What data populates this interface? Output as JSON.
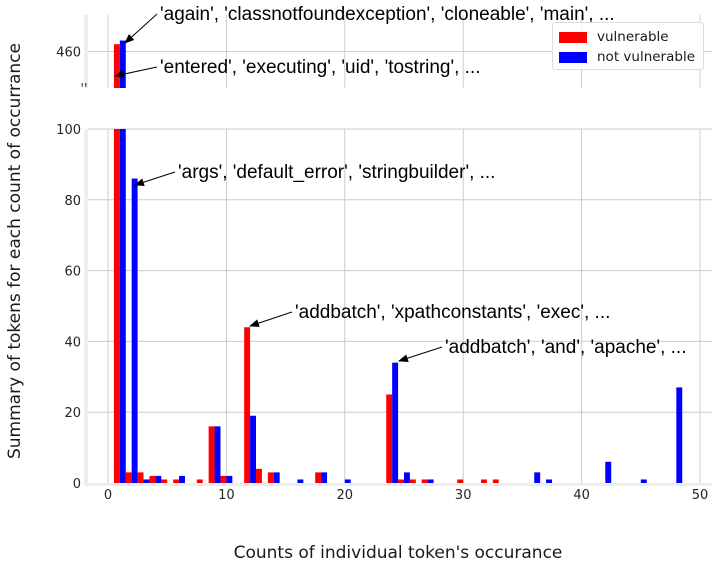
{
  "chart_data": {
    "type": "bar",
    "title": "",
    "xlabel": "Counts of individual token's occurance",
    "ylabel": "Summary of tokens for each count of occurrance",
    "xlim": [
      -1,
      51
    ],
    "ylim_bottom": [
      0,
      100
    ],
    "ylim_top": [
      450,
      470
    ],
    "broken_axis": true,
    "grid": true,
    "legend_position": "upper right",
    "x_ticks": [
      0,
      10,
      20,
      30,
      40,
      50
    ],
    "y_ticks_bottom": [
      0,
      20,
      40,
      60,
      80,
      100
    ],
    "y_ticks_top": [
      460
    ],
    "series": [
      {
        "name": "vulnerable",
        "color": "#ff0000",
        "points": [
          {
            "x": 1,
            "y": 462
          },
          {
            "x": 2,
            "y": 3
          },
          {
            "x": 3,
            "y": 3
          },
          {
            "x": 4,
            "y": 2
          },
          {
            "x": 5,
            "y": 1
          },
          {
            "x": 6,
            "y": 1
          },
          {
            "x": 8,
            "y": 1
          },
          {
            "x": 9,
            "y": 16
          },
          {
            "x": 10,
            "y": 2
          },
          {
            "x": 12,
            "y": 44
          },
          {
            "x": 13,
            "y": 4
          },
          {
            "x": 14,
            "y": 3
          },
          {
            "x": 18,
            "y": 3
          },
          {
            "x": 24,
            "y": 25
          },
          {
            "x": 25,
            "y": 1
          },
          {
            "x": 26,
            "y": 1
          },
          {
            "x": 27,
            "y": 1
          },
          {
            "x": 30,
            "y": 1
          },
          {
            "x": 32,
            "y": 1
          },
          {
            "x": 33,
            "y": 1
          }
        ]
      },
      {
        "name": "not vulnerable",
        "color": "#0000ff",
        "points": [
          {
            "x": 1,
            "y": 463
          },
          {
            "x": 2,
            "y": 86
          },
          {
            "x": 3,
            "y": 1
          },
          {
            "x": 4,
            "y": 2
          },
          {
            "x": 6,
            "y": 2
          },
          {
            "x": 9,
            "y": 16
          },
          {
            "x": 10,
            "y": 2
          },
          {
            "x": 12,
            "y": 19
          },
          {
            "x": 14,
            "y": 3
          },
          {
            "x": 16,
            "y": 1
          },
          {
            "x": 18,
            "y": 3
          },
          {
            "x": 20,
            "y": 1
          },
          {
            "x": 24,
            "y": 34
          },
          {
            "x": 25,
            "y": 3
          },
          {
            "x": 27,
            "y": 1
          },
          {
            "x": 36,
            "y": 3
          },
          {
            "x": 37,
            "y": 1
          },
          {
            "x": 42,
            "y": 6
          },
          {
            "x": 45,
            "y": 1
          },
          {
            "x": 48,
            "y": 27
          }
        ]
      }
    ],
    "annotations": [
      {
        "text": "'again', 'classnotfoundexception', 'cloneable', 'main', ...",
        "series": "not vulnerable",
        "x": 1,
        "y": 463,
        "panel": "top"
      },
      {
        "text": "'entered', 'executing', 'uid', 'tostring', ...",
        "series": "vulnerable",
        "x": 1,
        "y": 462,
        "panel": "top"
      },
      {
        "text": "'args', 'default_error', 'stringbuilder', ...",
        "series": "not vulnerable",
        "x": 2,
        "y": 86,
        "panel": "bottom"
      },
      {
        "text": "'addbatch', 'xpathconstants', 'exec', ...",
        "series": "vulnerable",
        "x": 12,
        "y": 44,
        "panel": "bottom"
      },
      {
        "text": "'addbatch', 'and', 'apache', ...",
        "series": "not vulnerable",
        "x": 24,
        "y": 34,
        "panel": "bottom"
      }
    ]
  },
  "legend": {
    "items": [
      {
        "label": "vulnerable",
        "color": "#ff0000"
      },
      {
        "label": "not vulnerable",
        "color": "#0000ff"
      }
    ]
  },
  "axes": {
    "xlabel": "Counts of individual token's occurance",
    "ylabel": "Summary of tokens for each count of occurrance"
  }
}
